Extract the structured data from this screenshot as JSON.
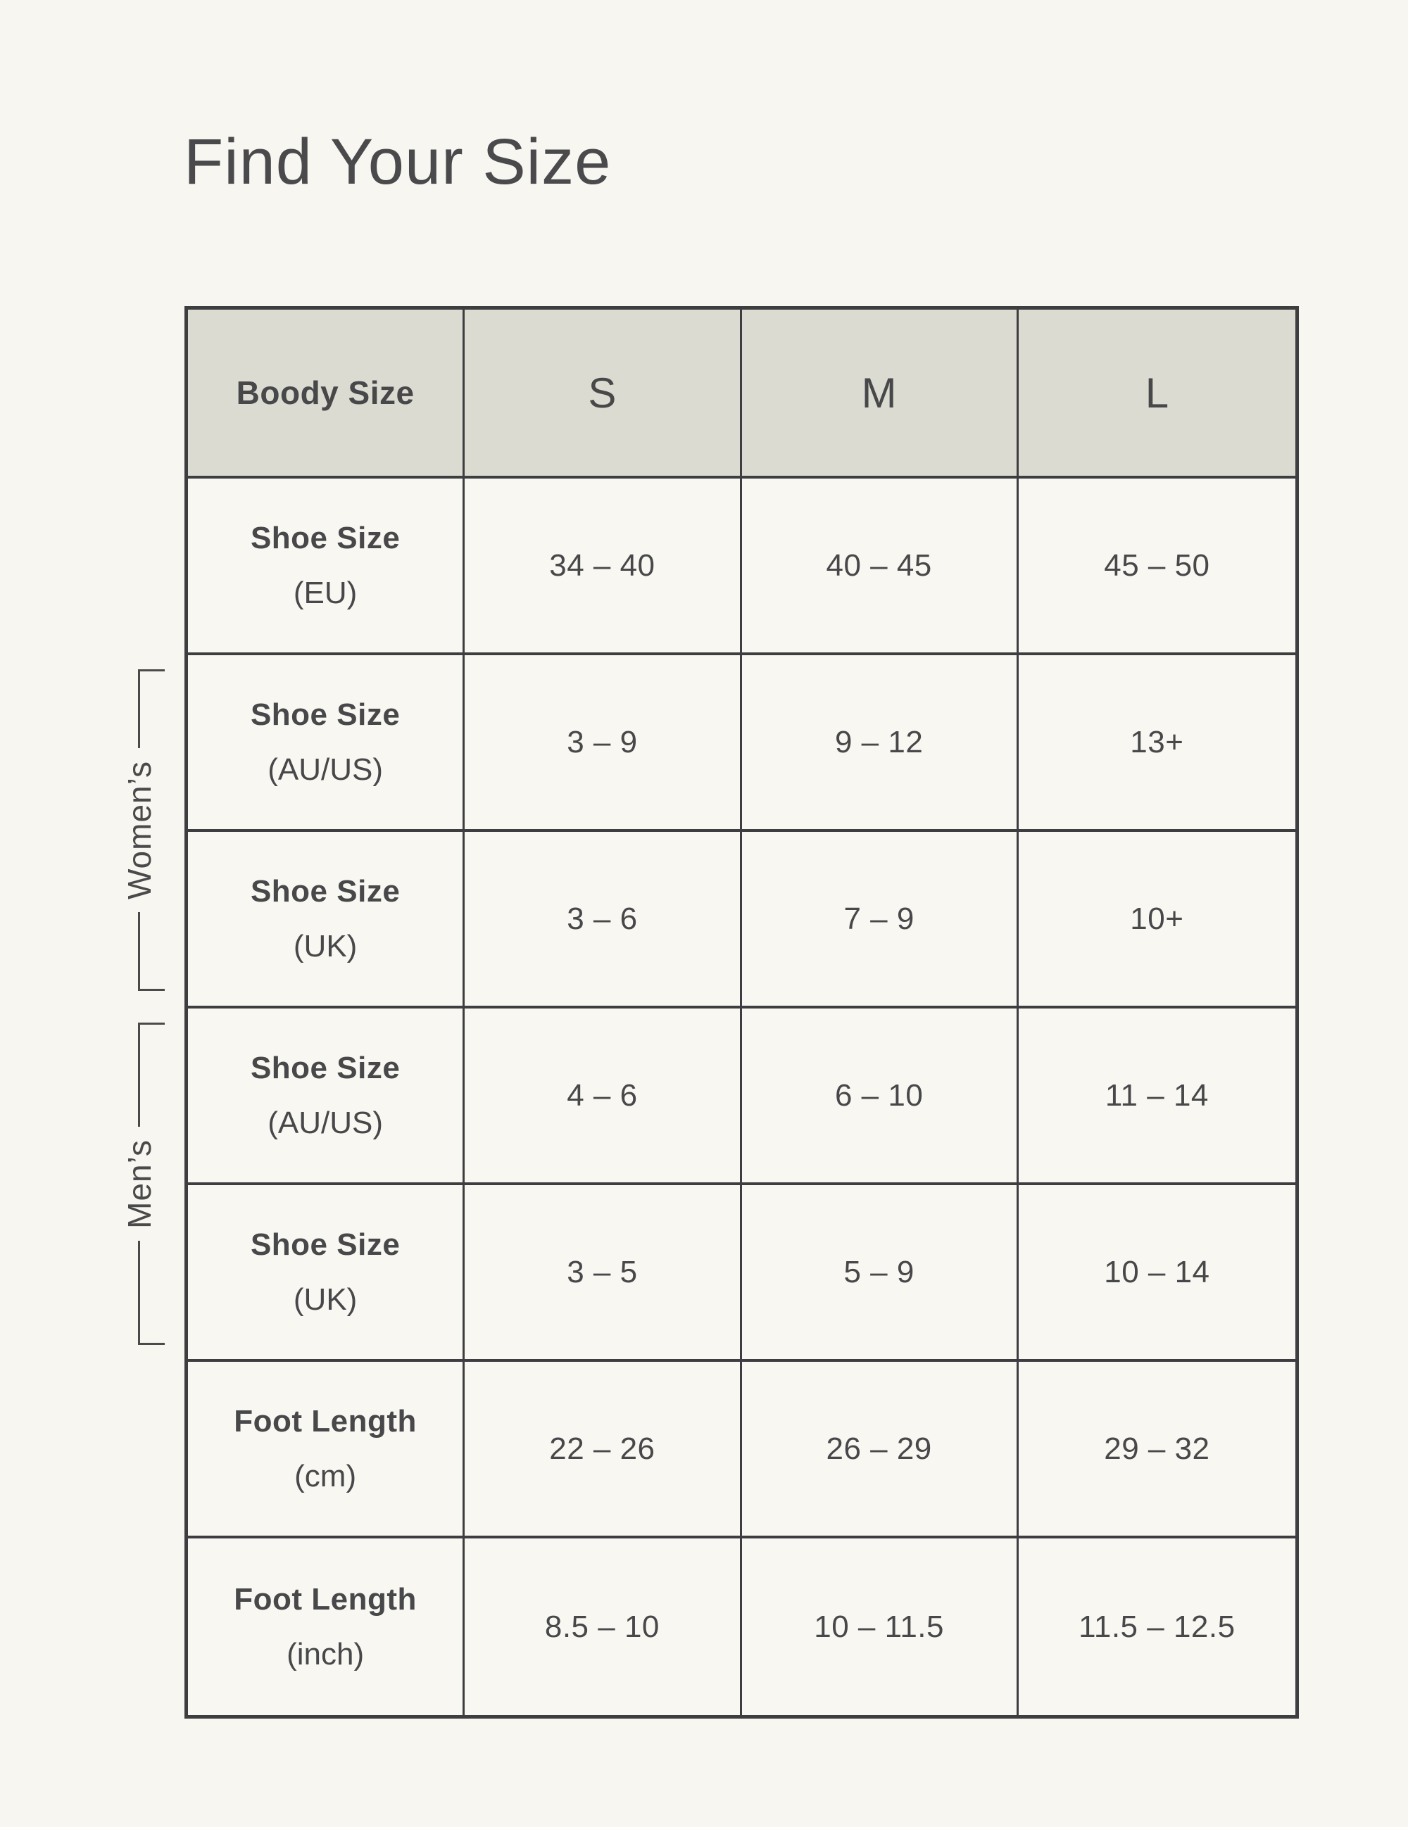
{
  "page": {
    "title": "Find Your Size"
  },
  "colors": {
    "background": "#f7f6f0",
    "header_background": "#dcdbd2",
    "border": "#3e3e40",
    "text": "#48484a"
  },
  "table": {
    "header": [
      "Boody Size",
      "S",
      "M",
      "L"
    ],
    "rows": [
      {
        "label": "Shoe Size",
        "unit": "(EU)",
        "values": [
          "34 – 40",
          "40 – 45",
          "45 – 50"
        ]
      },
      {
        "label": "Shoe Size",
        "unit": "(AU/US)",
        "values": [
          "3 – 9",
          "9 – 12",
          "13+"
        ]
      },
      {
        "label": "Shoe Size",
        "unit": "(UK)",
        "values": [
          "3 – 6",
          "7 – 9",
          "10+"
        ]
      },
      {
        "label": "Shoe Size",
        "unit": "(AU/US)",
        "values": [
          "4 – 6",
          "6 – 10",
          "11 – 14"
        ]
      },
      {
        "label": "Shoe Size",
        "unit": "(UK)",
        "values": [
          "3 – 5",
          "5 – 9",
          "10 – 14"
        ]
      },
      {
        "label": "Foot Length",
        "unit": "(cm)",
        "values": [
          "22 – 26",
          "26 – 29",
          "29 – 32"
        ]
      },
      {
        "label": "Foot Length",
        "unit": "(inch)",
        "values": [
          "8.5 – 10",
          "10 – 11.5",
          "11.5 – 12.5"
        ]
      }
    ],
    "groups": [
      {
        "label": "Women’s",
        "covers_rows": "Shoe Size (AU/US) and Shoe Size (UK) women's rows"
      },
      {
        "label": "Men’s",
        "covers_rows": "Shoe Size (AU/US) and Shoe Size (UK) men's rows"
      }
    ]
  },
  "chart_data": {
    "type": "table",
    "title": "Find Your Size",
    "columns": [
      "Boody Size",
      "S",
      "M",
      "L"
    ],
    "rows": [
      {
        "group": "",
        "label": "Shoe Size (EU)",
        "S": "34 – 40",
        "M": "40 – 45",
        "L": "45 – 50"
      },
      {
        "group": "Women’s",
        "label": "Shoe Size (AU/US)",
        "S": "3 – 9",
        "M": "9 – 12",
        "L": "13+"
      },
      {
        "group": "Women’s",
        "label": "Shoe Size (UK)",
        "S": "3 – 6",
        "M": "7 – 9",
        "L": "10+"
      },
      {
        "group": "Men’s",
        "label": "Shoe Size (AU/US)",
        "S": "4 – 6",
        "M": "6 – 10",
        "L": "11 – 14"
      },
      {
        "group": "Men’s",
        "label": "Shoe Size (UK)",
        "S": "3 – 5",
        "M": "5 – 9",
        "L": "10 – 14"
      },
      {
        "group": "",
        "label": "Foot Length (cm)",
        "S": "22 – 26",
        "M": "26 – 29",
        "L": "29 – 32"
      },
      {
        "group": "",
        "label": "Foot Length (inch)",
        "S": "8.5 – 10",
        "M": "10 – 11.5",
        "L": "11.5 – 12.5"
      }
    ]
  }
}
